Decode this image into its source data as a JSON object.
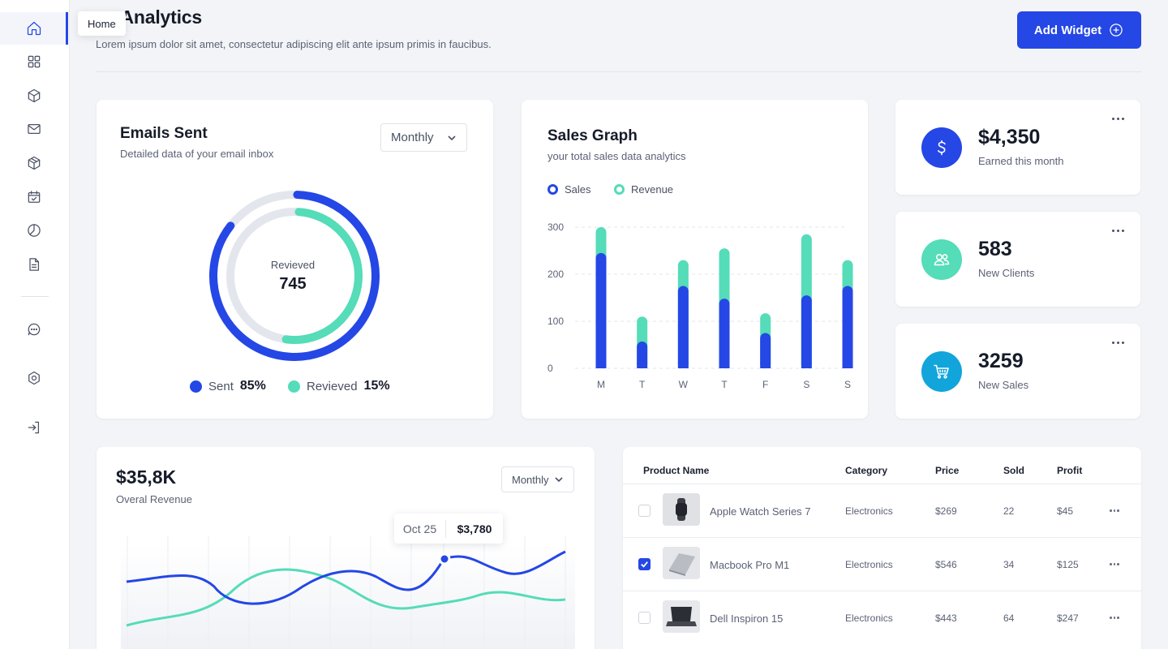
{
  "sidebar": {
    "tooltip": "Home",
    "items": [
      {
        "name": "home-icon"
      },
      {
        "name": "grid-icon"
      },
      {
        "name": "box-icon"
      },
      {
        "name": "mail-icon"
      },
      {
        "name": "package-icon"
      },
      {
        "name": "calendar-check-icon"
      },
      {
        "name": "pie-chart-icon"
      },
      {
        "name": "document-icon"
      },
      {
        "name": "chat-icon"
      },
      {
        "name": "settings-icon"
      },
      {
        "name": "logout-icon"
      }
    ]
  },
  "header": {
    "title": "es Analytics",
    "subtitle": "Lorem ipsum dolor sit amet, consectetur adipiscing elit ante ipsum primis in faucibus.",
    "add_widget": "Add Widget"
  },
  "emails": {
    "title": "Emails Sent",
    "subtitle": "Detailed data of your email inbox",
    "period": "Monthly",
    "center_label": "Revieved",
    "center_value": "745",
    "legend": [
      {
        "label": "Sent",
        "value": "85%",
        "color": "#2447e5"
      },
      {
        "label": "Revieved",
        "value": "15%",
        "color": "#55dcb8"
      }
    ]
  },
  "sales_graph": {
    "title": "Sales Graph",
    "subtitle": "your total sales data analytics",
    "legend": [
      {
        "label": "Sales",
        "color": "#2447e5"
      },
      {
        "label": "Revenue",
        "color": "#55dcb8"
      }
    ]
  },
  "chart_data": {
    "type": "bar",
    "stacked": true,
    "categories": [
      "M",
      "T",
      "W",
      "T",
      "F",
      "S",
      "S"
    ],
    "series": [
      {
        "name": "Sales",
        "values": [
          245,
          57,
          175,
          148,
          75,
          155,
          175
        ]
      },
      {
        "name": "Revenue",
        "values": [
          55,
          53,
          55,
          107,
          42,
          130,
          55
        ]
      }
    ],
    "yticks": [
      "300",
      "200",
      "100",
      "0"
    ],
    "ylim": [
      0,
      300
    ]
  },
  "stats": [
    {
      "value": "$4,350",
      "label": "Earned this month",
      "icon": "dollar-icon",
      "color": "#2447e5"
    },
    {
      "value": "583",
      "label": "New Clients",
      "icon": "users-icon",
      "color": "#55dcb8"
    },
    {
      "value": "3259",
      "label": "New Sales",
      "icon": "cart-icon",
      "color": "#11a5db"
    }
  ],
  "revenue": {
    "value": "$35,8K",
    "label": "Overal Revenue",
    "period": "Monthly",
    "tooltip_date": "Oct 25",
    "tooltip_value": "$3,780"
  },
  "products": {
    "headers": [
      "Product Name",
      "Category",
      "Price",
      "Sold",
      "Profit"
    ],
    "rows": [
      {
        "name": "Apple Watch Series 7",
        "category": "Electronics",
        "price": "$269",
        "sold": "22",
        "profit": "$45",
        "checked": false
      },
      {
        "name": "Macbook Pro M1",
        "category": "Electronics",
        "price": "$546",
        "sold": "34",
        "profit": "$125",
        "checked": true
      },
      {
        "name": "Dell Inspiron 15",
        "category": "Electronics",
        "price": "$443",
        "sold": "64",
        "profit": "$247",
        "checked": false
      }
    ]
  }
}
